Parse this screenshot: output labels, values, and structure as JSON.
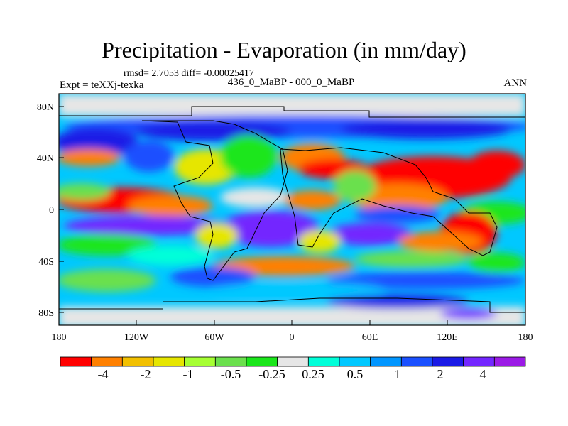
{
  "title": "Precipitation - Evaporation (in mm/day)",
  "stats": "rmsd= 2.7053 diff= -0.00025417",
  "experiment": "Expt = teXXj-texka",
  "cases": "436_0_MaBP - 000_0_MaBP",
  "season": "ANN",
  "y_ticks": [
    "80N",
    "40N",
    "0",
    "40S",
    "80S"
  ],
  "x_ticks": [
    "180",
    "120W",
    "60W",
    "0",
    "60E",
    "120E",
    "180"
  ],
  "colorbar": {
    "colors": [
      "#ff0000",
      "#ff8000",
      "#f2c000",
      "#e6e600",
      "#a6ff33",
      "#6be04d",
      "#1ae61a",
      "#e6e6e6",
      "#00ffd9",
      "#00c8ff",
      "#0096ff",
      "#1a50ff",
      "#1a1ae6",
      "#7326ff",
      "#9b1ae6"
    ],
    "labels": [
      "-4",
      "-2",
      "-1",
      "-0.5",
      "-0.25",
      "0.25",
      "0.5",
      "1",
      "2",
      "4"
    ]
  },
  "colors": {
    "dry_strong": "#ff0000",
    "dry": "#ff8000",
    "neutral": "#e6e6e6",
    "wet": "#1a50ff",
    "wet_strong": "#9b1ae6"
  }
}
